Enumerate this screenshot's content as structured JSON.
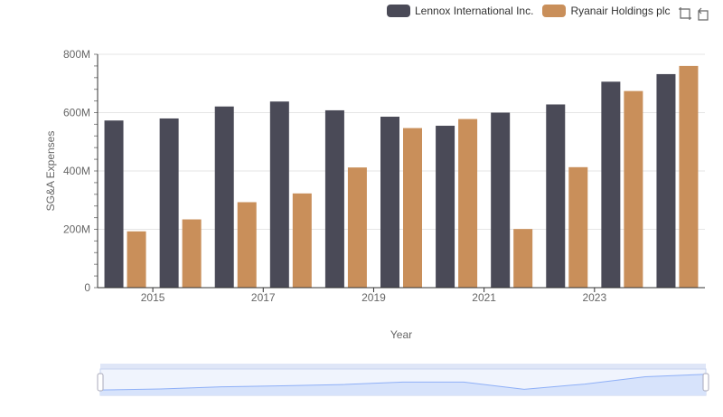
{
  "legend": {
    "items": [
      {
        "name": "Lennox International Inc.",
        "color": "#4a4a57"
      },
      {
        "name": "Ryanair Holdings plc",
        "color": "#c98f5a"
      }
    ]
  },
  "toolbox": {
    "icons": [
      "zoom-icon",
      "restore-icon"
    ]
  },
  "colors": {
    "grid": "#e6e6e6",
    "axis": "#333333",
    "slider_fill": "#d7e3fb",
    "slider_line": "#8fb0f7"
  },
  "chart_data": {
    "type": "bar",
    "xlabel": "Year",
    "ylabel": "SG&A Expenses",
    "ylim": [
      0,
      800
    ],
    "y_ticks": [
      0,
      200,
      400,
      600,
      800
    ],
    "y_tick_labels": [
      "0",
      "200M",
      "400M",
      "600M",
      "800M"
    ],
    "categories": [
      "2014",
      "2015",
      "2016",
      "2017",
      "2018",
      "2019",
      "2020",
      "2021",
      "2022",
      "2023",
      "2024"
    ],
    "x_tick_labels": [
      "2015",
      "2017",
      "2019",
      "2021",
      "2023"
    ],
    "series": [
      {
        "name": "Lennox International Inc.",
        "values": [
          573,
          580,
          621,
          638,
          608,
          586,
          555,
          600,
          628,
          706,
          732
        ]
      },
      {
        "name": "Ryanair Holdings plc",
        "values": [
          193,
          234,
          293,
          323,
          412,
          547,
          578,
          201,
          413,
          674,
          760
        ]
      }
    ]
  }
}
